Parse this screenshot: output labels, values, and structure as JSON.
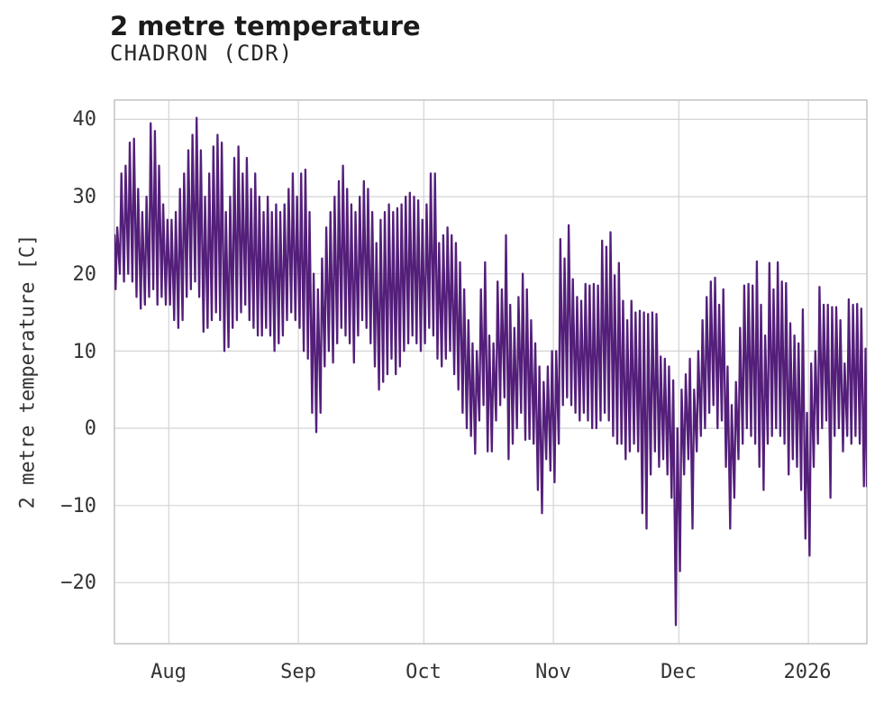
{
  "chart_data": {
    "type": "line",
    "title": "2 metre temperature",
    "subtitle": "CHADRON (CDR)",
    "ylabel": "2 metre temperature [C]",
    "series_name": "2 metre temperature",
    "line_color": "#541f7a",
    "grid_color": "#d4d4d4",
    "frame_color": "#c6c6c6",
    "text_color": "#333333",
    "ylim": [
      -27.9,
      42.5
    ],
    "x_days_total": 180,
    "start_date_estimate": "2025-07-19",
    "yticks": [
      {
        "label": "40",
        "value": 40
      },
      {
        "label": "30",
        "value": 30
      },
      {
        "label": "20",
        "value": 20
      },
      {
        "label": "10",
        "value": 10
      },
      {
        "label": "0",
        "value": 0
      },
      {
        "label": "−10",
        "value": -10
      },
      {
        "label": "−20",
        "value": -20
      }
    ],
    "xticks": [
      {
        "label": "Aug",
        "day": 13
      },
      {
        "label": "Sep",
        "day": 44
      },
      {
        "label": "Oct",
        "day": 74
      },
      {
        "label": "Nov",
        "day": 105
      },
      {
        "label": "Dec",
        "day": 135
      },
      {
        "label": "2026",
        "day": 166
      }
    ],
    "leading_value": 25,
    "trailing_value": -7.5,
    "daily_max": [
      26,
      33,
      34,
      37,
      37.5,
      31,
      28,
      30,
      39.5,
      38.5,
      34,
      29,
      27,
      27,
      28,
      31,
      33,
      36,
      38,
      40.2,
      36,
      30,
      33,
      36.5,
      38,
      37,
      28,
      30,
      35,
      36.5,
      33,
      35,
      31,
      33,
      30,
      28,
      30,
      28,
      29,
      28,
      29,
      31,
      33,
      30,
      33,
      33.5,
      28,
      20,
      18,
      22,
      26,
      28,
      30,
      32,
      34,
      31,
      29,
      28,
      30,
      32,
      31,
      28,
      24,
      27,
      28,
      29,
      28,
      28.5,
      29,
      30,
      30.5,
      30,
      29.5,
      27,
      29,
      33,
      33,
      24,
      25,
      26,
      25,
      24,
      21.5,
      18,
      14,
      11,
      10,
      18,
      21.5,
      12,
      11,
      19,
      18,
      25,
      16,
      13,
      17,
      20,
      18,
      14,
      11,
      8,
      6,
      8,
      10,
      10,
      24.5,
      22,
      26.3,
      19.3,
      17,
      16.5,
      18.7,
      18.5,
      18.7,
      18.5,
      24.3,
      23.5,
      25.4,
      19.8,
      21.4,
      16.5,
      14,
      16.5,
      15,
      15.2,
      15,
      14.8,
      15,
      14.8,
      9.3,
      9,
      8,
      6.2,
      0,
      5,
      7,
      9,
      5,
      10,
      14,
      17,
      19,
      19.5,
      16,
      18,
      8,
      3,
      6,
      13,
      18.5,
      18.7,
      18.5,
      21.6,
      16,
      12,
      21.4,
      18,
      21.5,
      19,
      18.8,
      13.6,
      12,
      11,
      15.4,
      2,
      8.4,
      10,
      18.3,
      16,
      16,
      15.7,
      15.7,
      14,
      8.4,
      16.7,
      16,
      16.1,
      15.5,
      10.3
    ],
    "daily_min": [
      18,
      20,
      19,
      20,
      19,
      17,
      15.5,
      16,
      17,
      18,
      16,
      17,
      16,
      16,
      14,
      13,
      14,
      17,
      18,
      19,
      17,
      12.5,
      13,
      14,
      15,
      14,
      10,
      10.5,
      13,
      14,
      15,
      16,
      14,
      13,
      12,
      12,
      13,
      12,
      10,
      11,
      12,
      14,
      15,
      14,
      13,
      10,
      9,
      2,
      -0.5,
      2,
      8,
      10,
      8.5,
      11,
      13,
      12,
      11,
      8.5,
      12,
      14,
      13,
      11,
      8,
      5,
      6,
      7,
      9,
      7,
      8,
      10,
      11,
      12,
      11,
      10,
      11,
      13,
      12,
      9,
      8,
      9,
      10,
      7,
      5,
      2,
      0,
      -1,
      -3.3,
      1,
      3,
      -3,
      -3,
      1,
      3,
      4,
      -4,
      -2,
      0,
      2,
      -1.5,
      -1.4,
      -2,
      -8,
      -11,
      -4,
      -5.5,
      -7,
      -2,
      3,
      4,
      3,
      2,
      1,
      2,
      1,
      0,
      0,
      1,
      2,
      1,
      -1,
      -2,
      -2,
      -4,
      -3,
      -2,
      -3,
      -11,
      -13,
      -6,
      -3,
      -5,
      -4,
      -6,
      -9,
      -25.5,
      -18.5,
      -6,
      -4,
      -13,
      -3,
      -1,
      0,
      2,
      3,
      0,
      1,
      -5,
      -13,
      -9,
      -4,
      -2,
      0,
      -1,
      -2,
      -5,
      -8,
      -2,
      -1,
      0,
      -1,
      -2,
      -6,
      -4,
      -5,
      -8,
      -14.3,
      -16.5,
      -5,
      -2,
      0,
      1,
      -9,
      -1,
      0,
      -3,
      -1,
      -2,
      -1,
      -2,
      -7.5
    ]
  }
}
